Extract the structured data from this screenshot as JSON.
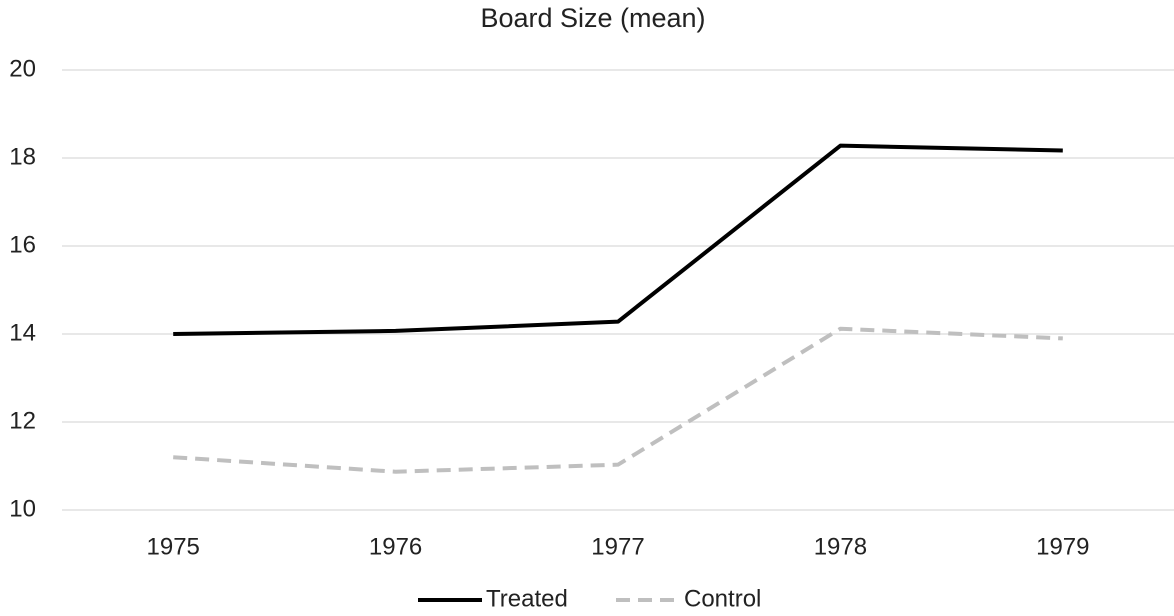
{
  "chart_data": {
    "type": "line",
    "title": "Board Size (mean)",
    "categories": [
      "1975",
      "1976",
      "1977",
      "1978",
      "1979"
    ],
    "series": [
      {
        "name": "Treated",
        "color": "#000000",
        "dash": false,
        "values": [
          14.0,
          14.07,
          14.28,
          18.28,
          18.17
        ]
      },
      {
        "name": "Control",
        "color": "#bfbfbf",
        "dash": true,
        "values": [
          11.2,
          10.87,
          11.03,
          14.12,
          13.9
        ]
      }
    ],
    "ylim": [
      10,
      20
    ],
    "yticks": [
      10,
      12,
      14,
      16,
      18,
      20
    ],
    "grid": true,
    "legend": "bottom"
  }
}
